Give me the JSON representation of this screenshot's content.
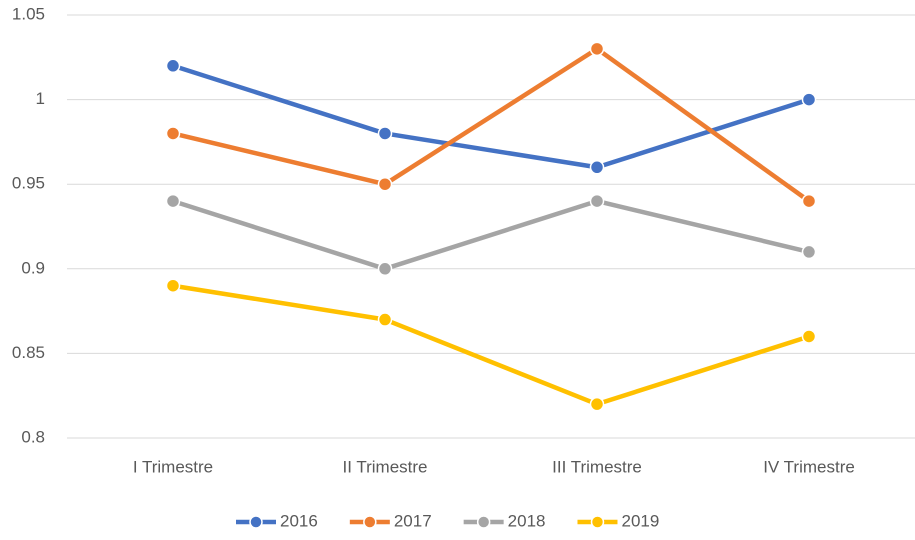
{
  "chart_data": {
    "type": "line",
    "categories": [
      "I Trimestre",
      "II Trimestre",
      "III Trimestre",
      "IV Trimestre"
    ],
    "series": [
      {
        "name": "2016",
        "color": "#4472c4",
        "values": [
          1.02,
          0.98,
          0.96,
          1.0
        ]
      },
      {
        "name": "2017",
        "color": "#ed7d31",
        "values": [
          0.98,
          0.95,
          1.03,
          0.94
        ]
      },
      {
        "name": "2018",
        "color": "#a5a5a5",
        "values": [
          0.94,
          0.9,
          0.94,
          0.91
        ]
      },
      {
        "name": "2019",
        "color": "#ffc000",
        "values": [
          0.89,
          0.87,
          0.82,
          0.86
        ]
      }
    ],
    "ylim": [
      0.8,
      1.05
    ],
    "yticks": [
      0.8,
      0.85,
      0.9,
      0.95,
      1,
      1.05
    ],
    "grid": true,
    "legend": "bottom"
  }
}
